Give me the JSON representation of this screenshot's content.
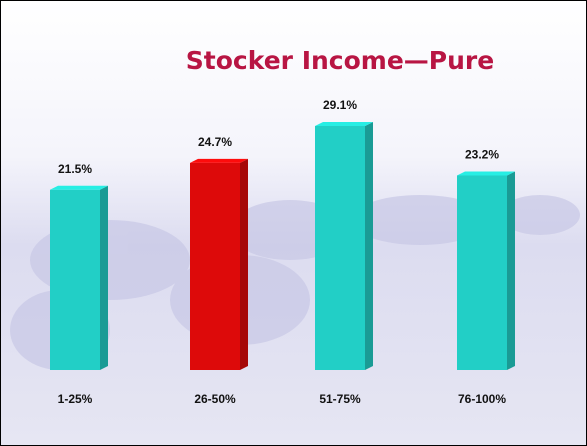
{
  "chart_data": {
    "type": "bar",
    "title": "Stocker Income—Pure",
    "categories": [
      "1-25%",
      "26-50%",
      "51-75%",
      "76-100%"
    ],
    "values": [
      21.5,
      24.7,
      29.1,
      23.2
    ],
    "value_labels": [
      "21.5%",
      "24.7%",
      "29.1%",
      "23.2%"
    ],
    "colors": [
      "#22cfc6",
      "#dd0a0a",
      "#22cfc6",
      "#22cfc6"
    ]
  }
}
